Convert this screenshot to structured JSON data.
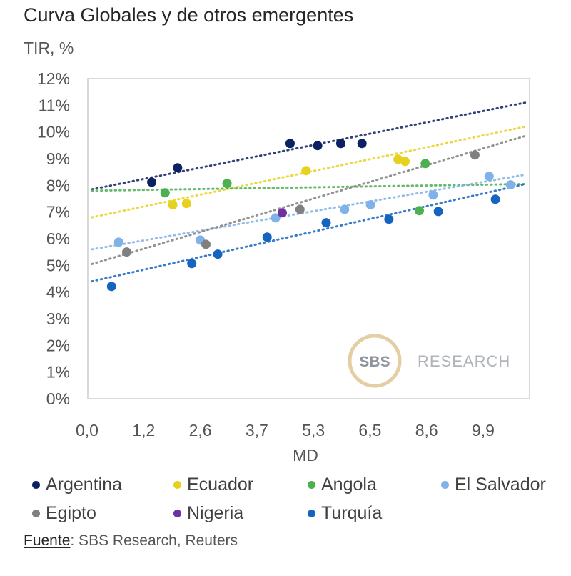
{
  "title": "Curva Globales y de otros emergentes",
  "y_unit_label": "TIR, %",
  "chart_data": {
    "type": "scatter",
    "title": "Curva Globales y de otros emergentes",
    "xlabel": "MD",
    "ylabel": "TIR, %",
    "x_tick_labels": [
      "0,0",
      "1,2",
      "2,6",
      "3,7",
      "5,3",
      "6,5",
      "8,6",
      "9,9"
    ],
    "x_tick_values": [
      0.0,
      1.2,
      2.6,
      3.7,
      5.3,
      6.5,
      8.6,
      9.9
    ],
    "xlim": [
      0.0,
      11.0
    ],
    "y_tick_labels": [
      "0%",
      "1%",
      "2%",
      "3%",
      "4%",
      "5%",
      "6%",
      "7%",
      "8%",
      "9%",
      "10%",
      "11%",
      "12%"
    ],
    "ylim": [
      0,
      12
    ],
    "grid": false,
    "legend_position": "bottom",
    "series": [
      {
        "name": "Argentina",
        "color": "#0b2161",
        "points": [
          [
            1.4,
            8.12
          ],
          [
            2.04,
            8.66
          ],
          [
            4.64,
            9.57
          ],
          [
            5.39,
            9.49
          ],
          [
            5.88,
            9.57
          ],
          [
            6.33,
            9.57
          ]
        ],
        "trendline": [
          [
            0.1,
            7.85
          ],
          [
            10.9,
            11.1
          ]
        ]
      },
      {
        "name": "Ecuador",
        "color": "#e6d21e",
        "points": [
          [
            1.92,
            7.27
          ],
          [
            2.26,
            7.32
          ],
          [
            5.09,
            8.55
          ],
          [
            7.54,
            8.98
          ],
          [
            7.8,
            8.9
          ]
        ],
        "trendline": [
          [
            0.1,
            6.8
          ],
          [
            10.9,
            10.2
          ]
        ]
      },
      {
        "name": "Angola",
        "color": "#4caf50",
        "points": [
          [
            1.73,
            7.72
          ],
          [
            3.12,
            8.07
          ],
          [
            8.33,
            7.05
          ],
          [
            8.55,
            8.82
          ]
        ],
        "trendline": [
          [
            0.1,
            7.8
          ],
          [
            10.9,
            8.05
          ]
        ]
      },
      {
        "name": "El Salvador",
        "color": "#7fb2e8",
        "points": [
          [
            0.67,
            5.87
          ],
          [
            2.6,
            5.95
          ],
          [
            4.23,
            6.78
          ],
          [
            5.96,
            7.1
          ],
          [
            6.52,
            7.27
          ],
          [
            8.75,
            7.64
          ],
          [
            10.04,
            8.34
          ],
          [
            10.55,
            8.02
          ]
        ],
        "trendline": [
          [
            0.1,
            5.6
          ],
          [
            10.9,
            8.4
          ]
        ]
      },
      {
        "name": "Egipto",
        "color": "#808080",
        "points": [
          [
            0.84,
            5.5
          ],
          [
            2.71,
            5.79
          ],
          [
            4.92,
            7.1
          ],
          [
            9.71,
            9.14
          ]
        ],
        "trendline": [
          [
            0.1,
            5.05
          ],
          [
            10.9,
            9.85
          ]
        ]
      },
      {
        "name": "Nigeria",
        "color": "#7030a0",
        "points": [
          [
            4.42,
            6.97
          ]
        ],
        "trendline": null
      },
      {
        "name": "Turquía",
        "color": "#1565c0",
        "points": [
          [
            0.52,
            4.21
          ],
          [
            2.39,
            5.07
          ],
          [
            2.94,
            5.42
          ],
          [
            3.99,
            6.06
          ],
          [
            5.57,
            6.6
          ],
          [
            7.2,
            6.73
          ],
          [
            8.87,
            7.02
          ],
          [
            10.19,
            7.48
          ]
        ],
        "trendline": [
          [
            0.1,
            4.4
          ],
          [
            10.9,
            8.05
          ]
        ]
      }
    ],
    "watermark": {
      "badge": "SBS",
      "text": "RESEARCH"
    }
  },
  "legend": [
    {
      "label": "Argentina",
      "color": "#0b2161"
    },
    {
      "label": "Ecuador",
      "color": "#e6d21e"
    },
    {
      "label": "Angola",
      "color": "#4caf50"
    },
    {
      "label": "El Salvador",
      "color": "#7fb2e8"
    },
    {
      "label": "Egipto",
      "color": "#808080"
    },
    {
      "label": "Nigeria",
      "color": "#7030a0"
    },
    {
      "label": "Turquía",
      "color": "#1565c0"
    }
  ],
  "source": {
    "label": "Fuente",
    "text": ": SBS Research, Reuters"
  }
}
